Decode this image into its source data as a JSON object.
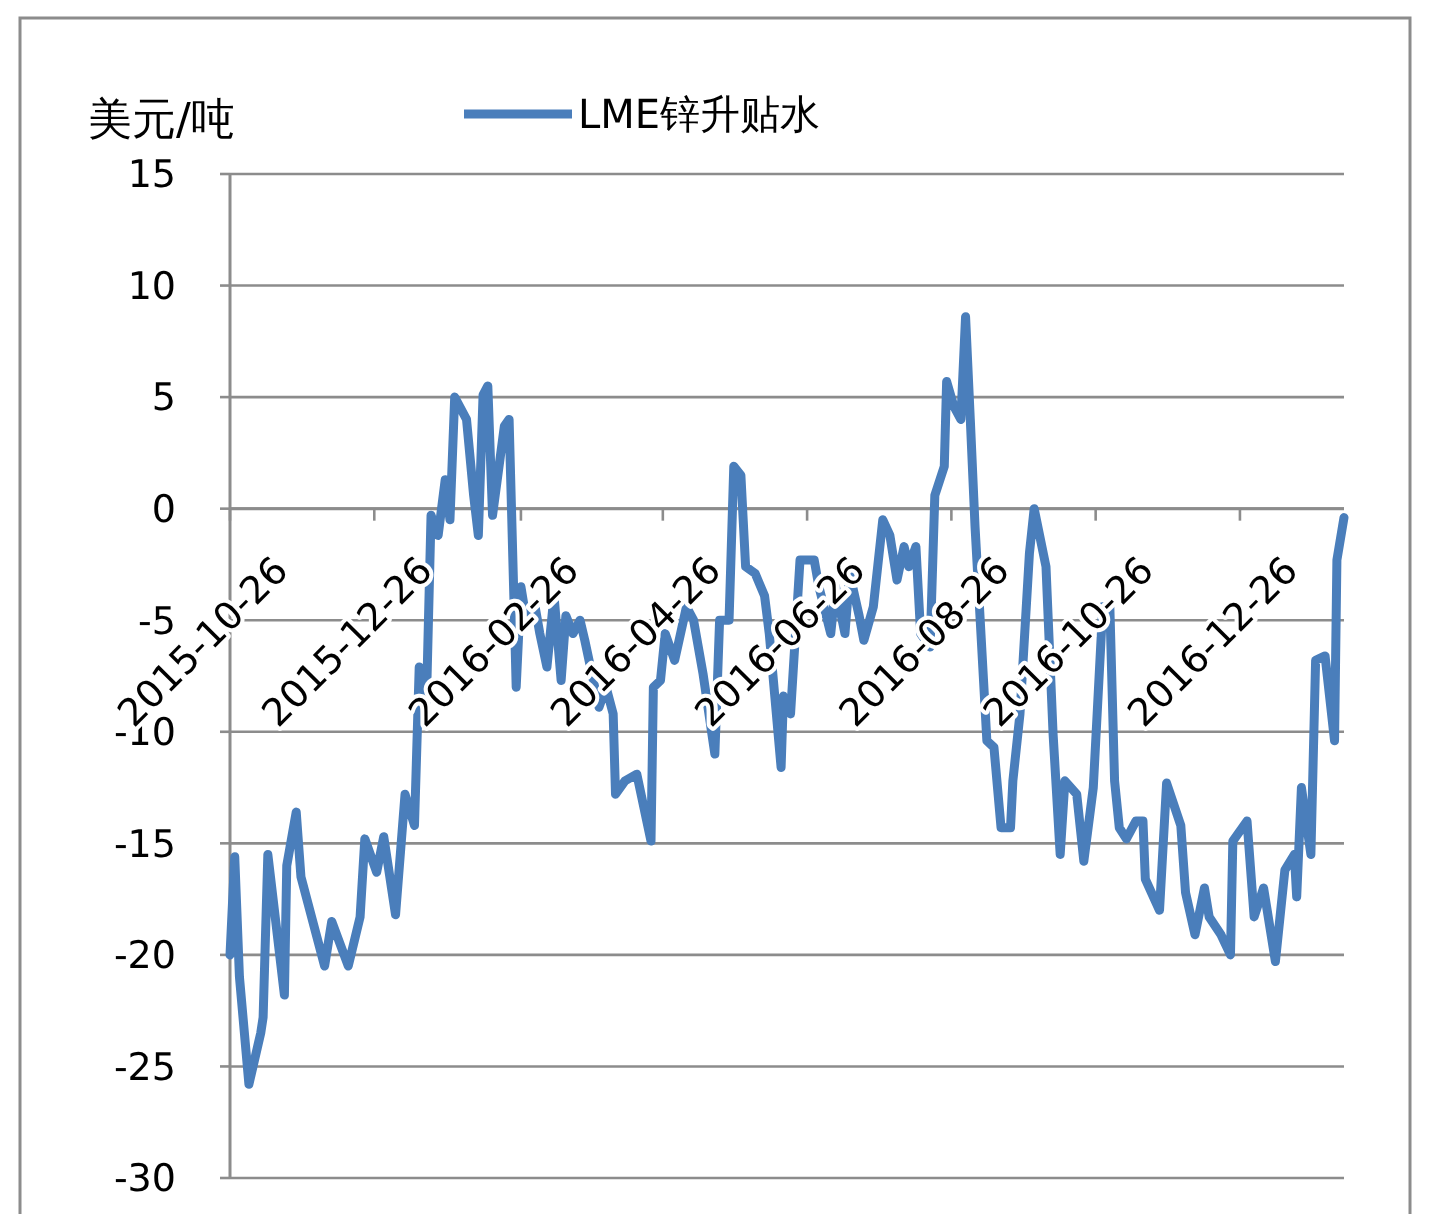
{
  "chart_data": {
    "type": "line",
    "ylabel": "美元/吨",
    "x": [
      "2015-10-26",
      "2015-10-28",
      "2015-10-30",
      "2015-11-03",
      "2015-11-08",
      "2015-11-09",
      "2015-11-11",
      "2015-11-18",
      "2015-11-19",
      "2015-11-23",
      "2015-11-25",
      "2015-12-05",
      "2015-12-08",
      "2015-12-15",
      "2015-12-20",
      "2015-12-22",
      "2015-12-27",
      "2015-12-30",
      "2016-01-04",
      "2016-01-08",
      "2016-01-12",
      "2016-01-14",
      "2016-01-17",
      "2016-01-19",
      "2016-01-22",
      "2016-01-25",
      "2016-01-27",
      "2016-01-29",
      "2016-02-03",
      "2016-02-06",
      "2016-02-08",
      "2016-02-10",
      "2016-02-12",
      "2016-02-14",
      "2016-02-19",
      "2016-02-21",
      "2016-02-23",
      "2016-02-24",
      "2016-02-26",
      "2016-02-28",
      "2016-03-03",
      "2016-03-05",
      "2016-03-08",
      "2016-03-11",
      "2016-03-14",
      "2016-03-16",
      "2016-03-19",
      "2016-03-22",
      "2016-03-24",
      "2016-03-30",
      "2016-04-02",
      "2016-04-05",
      "2016-04-06",
      "2016-04-10",
      "2016-04-15",
      "2016-04-21",
      "2016-04-22",
      "2016-04-25",
      "2016-04-27",
      "2016-05-01",
      "2016-05-06",
      "2016-05-09",
      "2016-05-13",
      "2016-05-18",
      "2016-05-20",
      "2016-05-24",
      "2016-05-26",
      "2016-05-29",
      "2016-05-31",
      "2016-06-04",
      "2016-06-08",
      "2016-06-10",
      "2016-06-15",
      "2016-06-16",
      "2016-06-19",
      "2016-06-23",
      "2016-06-26",
      "2016-06-29",
      "2016-07-01",
      "2016-07-06",
      "2016-07-08",
      "2016-07-12",
      "2016-07-14",
      "2016-07-18",
      "2016-07-20",
      "2016-07-24",
      "2016-07-28",
      "2016-07-31",
      "2016-08-03",
      "2016-08-06",
      "2016-08-08",
      "2016-08-11",
      "2016-08-13",
      "2016-08-17",
      "2016-08-19",
      "2016-08-23",
      "2016-08-24",
      "2016-08-27",
      "2016-08-30",
      "2016-09-01",
      "2016-09-03",
      "2016-09-05",
      "2016-09-10",
      "2016-09-13",
      "2016-09-16",
      "2016-09-20",
      "2016-09-21",
      "2016-09-24",
      "2016-09-28",
      "2016-09-30",
      "2016-10-05",
      "2016-10-08",
      "2016-10-11",
      "2016-10-13",
      "2016-10-18",
      "2016-10-21",
      "2016-10-25",
      "2016-10-29",
      "2016-11-01",
      "2016-11-03",
      "2016-11-05",
      "2016-11-08",
      "2016-11-12",
      "2016-11-15",
      "2016-11-16",
      "2016-11-22",
      "2016-11-25",
      "2016-12-01",
      "2016-12-03",
      "2016-12-07",
      "2016-12-11",
      "2016-12-13",
      "2016-12-18",
      "2016-12-22",
      "2016-12-23",
      "2016-12-29",
      "2017-01-01",
      "2017-01-05",
      "2017-01-10",
      "2017-01-14",
      "2017-01-18",
      "2017-01-19",
      "2017-01-21",
      "2017-01-25",
      "2017-01-27",
      "2017-01-31",
      "2017-02-04",
      "2017-02-05",
      "2017-02-08"
    ],
    "series": [
      {
        "name": "LME锌升贴水",
        "color": "#4a7ebb",
        "values": [
          -20,
          -15.6,
          -21,
          -25.8,
          -23.5,
          -22.8,
          -15.5,
          -21.8,
          -16,
          -13.6,
          -16.5,
          -20.5,
          -18.5,
          -20.5,
          -18.3,
          -14.8,
          -16.3,
          -14.7,
          -18.2,
          -12.8,
          -14.2,
          -7.1,
          -8.9,
          -0.3,
          -1.2,
          1.3,
          -0.5,
          5,
          4,
          0.6,
          -1.2,
          5.1,
          5.5,
          -0.3,
          3.7,
          4,
          -3.9,
          -8,
          -3.5,
          -4.8,
          -4.4,
          -5.6,
          -7.1,
          -3.9,
          -7.7,
          -4.8,
          -5.6,
          -5,
          -5.9,
          -8.9,
          -8,
          -9.2,
          -12.8,
          -12.2,
          -11.9,
          -14.9,
          -8,
          -7.7,
          -5.6,
          -6.8,
          -4.4,
          -5,
          -7.4,
          -11,
          -5,
          -5,
          1.9,
          1.5,
          -2.6,
          -2.9,
          -3.9,
          -5.6,
          -11.6,
          -8.4,
          -9.2,
          -2.3,
          -2.3,
          -2.3,
          -3.5,
          -5.6,
          -3.5,
          -5.6,
          -2.9,
          -4.8,
          -5.9,
          -4.4,
          -0.5,
          -1.2,
          -3.2,
          -1.7,
          -2.6,
          -1.7,
          -5.6,
          -6.2,
          0.6,
          1.9,
          5.7,
          4.6,
          4,
          8.6,
          4,
          -0.8,
          -10.4,
          -10.7,
          -14.3,
          -14.3,
          -12.2,
          -9.2,
          -2,
          0,
          -2.6,
          -10.1,
          -15.5,
          -12.2,
          -12.8,
          -15.8,
          -12.5,
          -4.4,
          -4.4,
          -12.2,
          -14.3,
          -14.8,
          -14,
          -14,
          -16.6,
          -18,
          -12.3,
          -14.2,
          -17.2,
          -19.1,
          -17,
          -18.3,
          -19.1,
          -20,
          -14.9,
          -14,
          -18.3,
          -17,
          -20.3,
          -16.2,
          -15.5,
          -17.4,
          -12.5,
          -15.5,
          -6.8,
          -6.6,
          -10.4,
          -2.3,
          -0.4
        ]
      }
    ],
    "xlim": [
      "2015-10-26",
      "2017-02-08"
    ],
    "xticks": [
      {
        "value": "2015-10-26",
        "label": "2015-10-26"
      },
      {
        "value": "2015-12-26",
        "label": "2015-12-26"
      },
      {
        "value": "2016-02-26",
        "label": "2016-02-26"
      },
      {
        "value": "2016-04-26",
        "label": "2016-04-26"
      },
      {
        "value": "2016-06-26",
        "label": "2016-06-26"
      },
      {
        "value": "2016-08-26",
        "label": "2016-08-26"
      },
      {
        "value": "2016-10-26",
        "label": "2016-10-26"
      },
      {
        "value": "2016-12-26",
        "label": "2016-12-26"
      }
    ],
    "ylim": [
      -30,
      15
    ],
    "yticks": [
      -30,
      -25,
      -20,
      -15,
      -10,
      -5,
      0,
      5,
      10,
      15
    ],
    "grid": "y",
    "legend": "top",
    "line_style": "solid",
    "marker": "none"
  }
}
